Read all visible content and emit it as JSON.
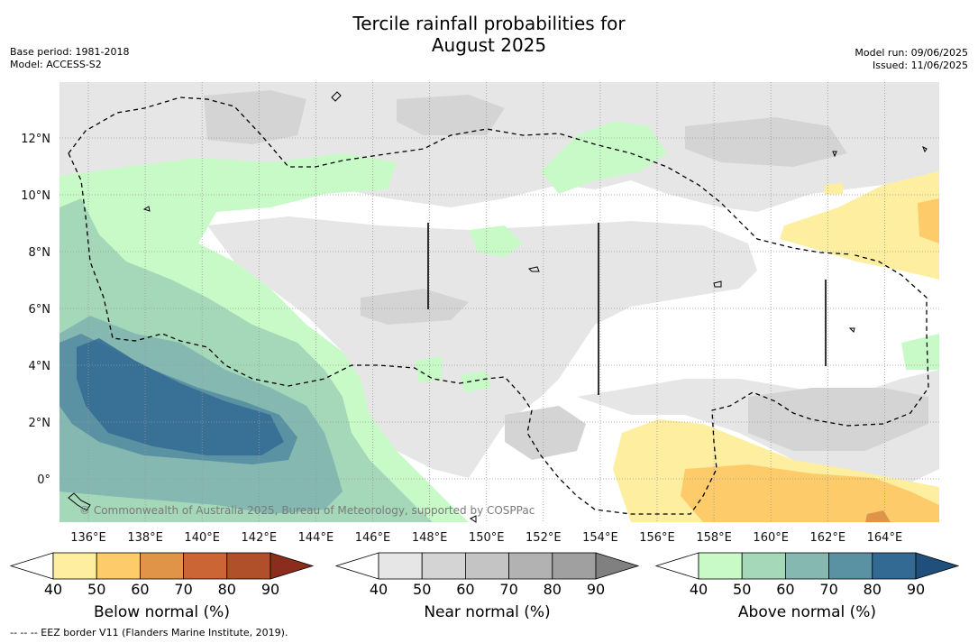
{
  "title_line1": "Tercile rainfall probabilities for",
  "title_line2": "August 2025",
  "base_period": "Base period: 1981-2018",
  "model": "Model: ACCESS-S2",
  "model_run": "Model run: 09/06/2025",
  "issued": "Issued: 11/06/2025",
  "copyright": "© Commonwealth of Australia 2025, Bureau of Meteorology, supported by COSPPac",
  "footer": "--  --  -- EEZ border V11 (Flanders Marine Institute, 2019).",
  "lon_labels": [
    "136°E",
    "138°E",
    "140°E",
    "142°E",
    "144°E",
    "146°E",
    "148°E",
    "150°E",
    "152°E",
    "154°E",
    "156°E",
    "158°E",
    "160°E",
    "162°E",
    "164°E"
  ],
  "lat_labels": [
    "12°N",
    "10°N",
    "8°N",
    "6°N",
    "4°N",
    "2°N",
    "0°"
  ],
  "colorbars": [
    {
      "title": "Below normal (%)",
      "ticks": [
        "40",
        "50",
        "60",
        "70",
        "80",
        "90"
      ],
      "colors": [
        "#ffffff",
        "#fdeea0",
        "#fdcb6a",
        "#e09448",
        "#cc6535",
        "#b0502a",
        "#8b2c1c"
      ]
    },
    {
      "title": "Near normal (%)",
      "ticks": [
        "40",
        "50",
        "60",
        "70",
        "80",
        "90"
      ],
      "colors": [
        "#ffffff",
        "#e6e6e6",
        "#d4d4d4",
        "#c4c4c4",
        "#b2b2b2",
        "#a0a0a0",
        "#808080"
      ]
    },
    {
      "title": "Above normal (%)",
      "ticks": [
        "40",
        "50",
        "60",
        "70",
        "80",
        "90"
      ],
      "colors": [
        "#ffffff",
        "#c8fac8",
        "#a4d8b8",
        "#84b8b0",
        "#5a92a4",
        "#336a94",
        "#1f4f7a"
      ]
    }
  ],
  "colors": {
    "grid": "#999999",
    "eez": "#000000"
  }
}
